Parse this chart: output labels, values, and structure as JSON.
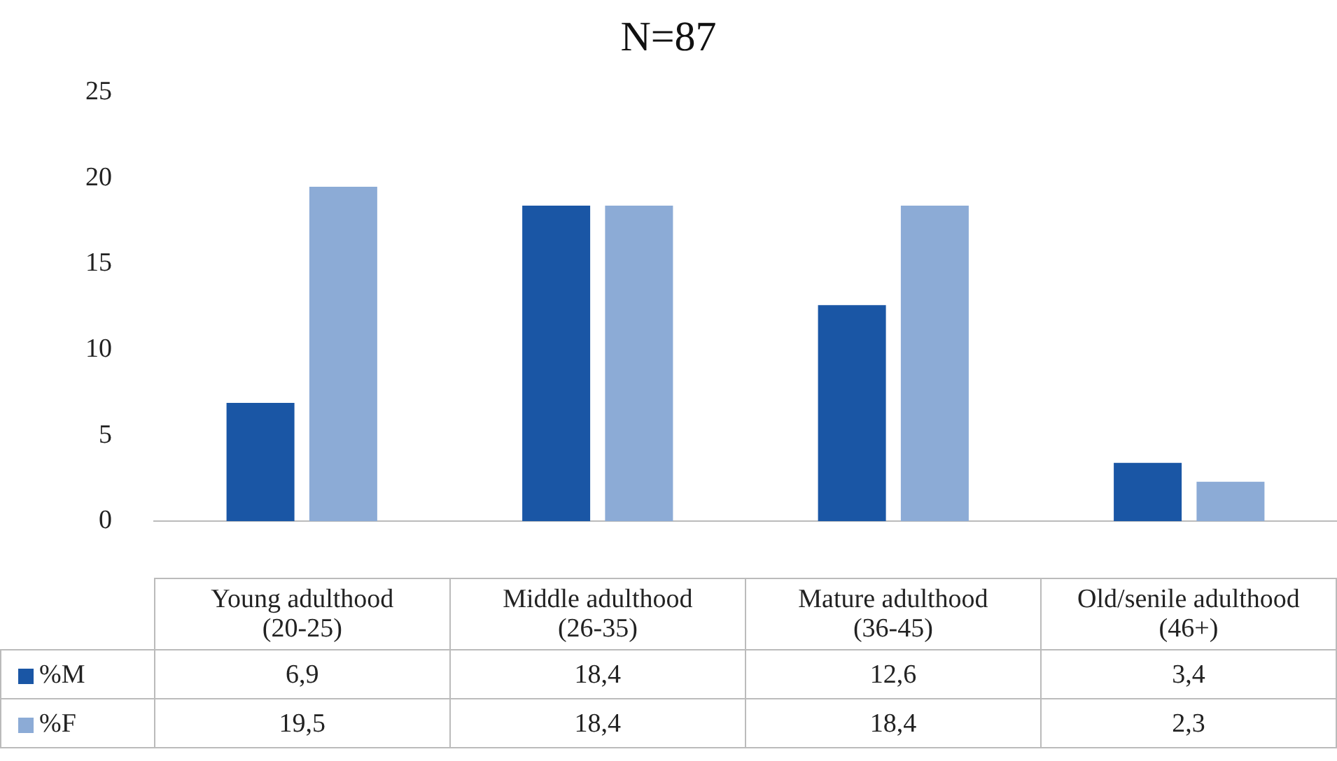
{
  "chart_data": {
    "type": "bar",
    "title": "N=87",
    "categories": [
      "Young adulthood\n(20-25)",
      "Middle adulthood\n(26-35)",
      "Mature adulthood\n(36-45)",
      "Old/senile adulthood\n(46+)"
    ],
    "series": [
      {
        "name": "%M",
        "color": "#1a56a5",
        "values": [
          6.9,
          18.4,
          12.6,
          3.4
        ],
        "value_labels": [
          "6,9",
          "18,4",
          "12,6",
          "3,4"
        ]
      },
      {
        "name": "%F",
        "color": "#8cabd6",
        "values": [
          19.5,
          18.4,
          18.4,
          2.3
        ],
        "value_labels": [
          "19,5",
          "18,4",
          "18,4",
          "2,3"
        ]
      }
    ],
    "ylim": [
      0,
      25
    ],
    "yticks": [
      0,
      5,
      10,
      15,
      20,
      25
    ],
    "grid": false,
    "legend": "bottom"
  }
}
